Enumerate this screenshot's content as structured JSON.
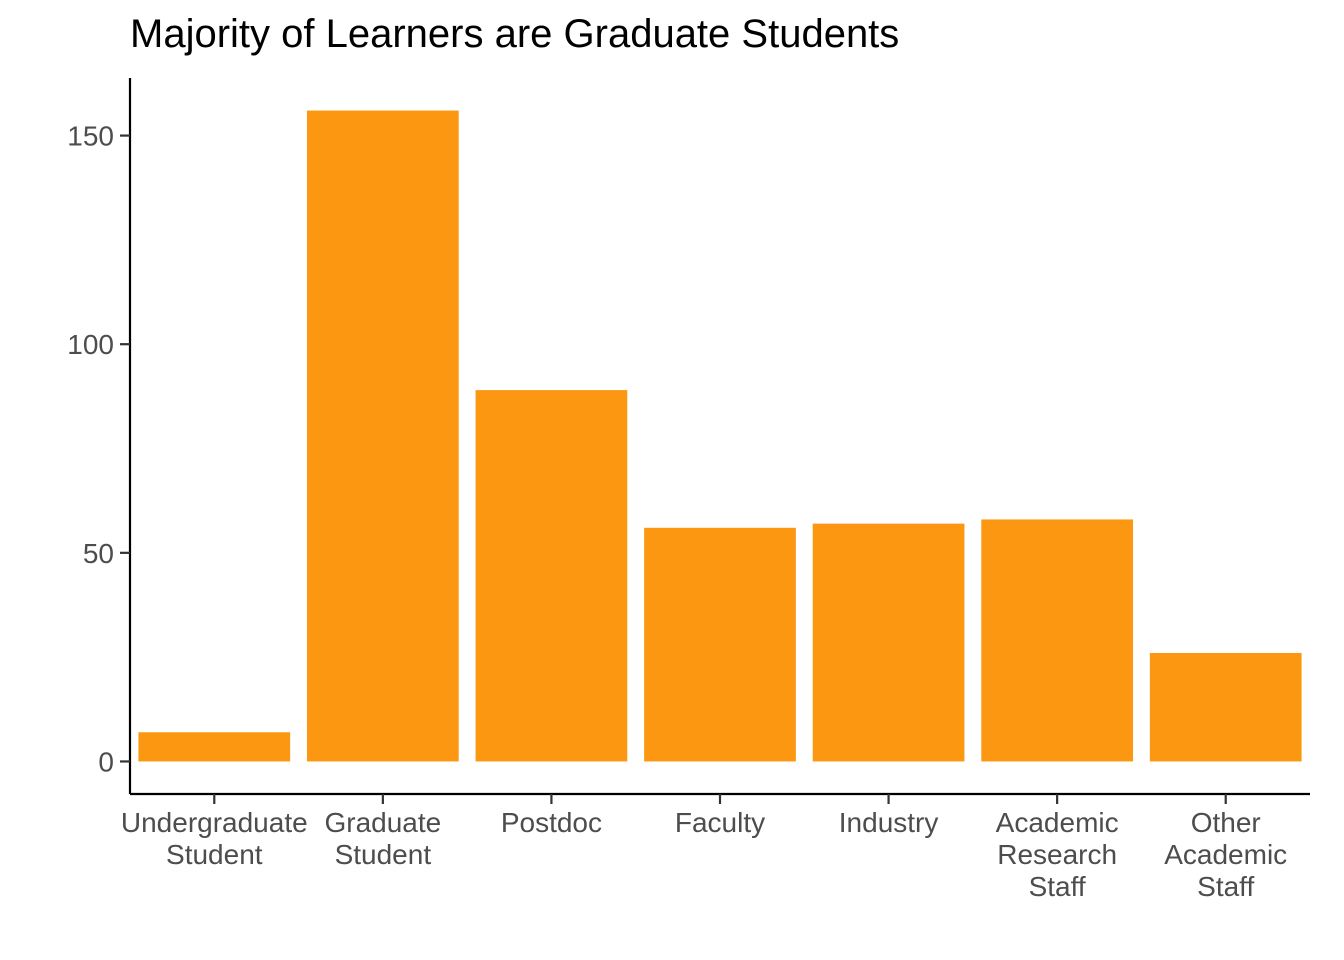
{
  "chart_data": {
    "type": "bar",
    "title": "Majority of Learners are Graduate Students",
    "xlabel": "",
    "ylabel": "",
    "categories": [
      [
        "Undergraduate",
        "Student"
      ],
      [
        "Graduate",
        "Student"
      ],
      [
        "Postdoc"
      ],
      [
        "Faculty"
      ],
      [
        "Industry"
      ],
      [
        "Academic",
        "Research",
        "Staff"
      ],
      [
        "Other",
        "Academic",
        "Staff"
      ]
    ],
    "values": [
      7,
      156,
      89,
      56,
      57,
      58,
      26
    ],
    "ylim": [
      -7.8,
      163.8
    ],
    "yticks": [
      0,
      50,
      100,
      150
    ],
    "grid": false,
    "legend": "none",
    "bar_color": "#FB9710",
    "axis_color": "#000000",
    "tick_label_color": "#4d4d4d"
  }
}
